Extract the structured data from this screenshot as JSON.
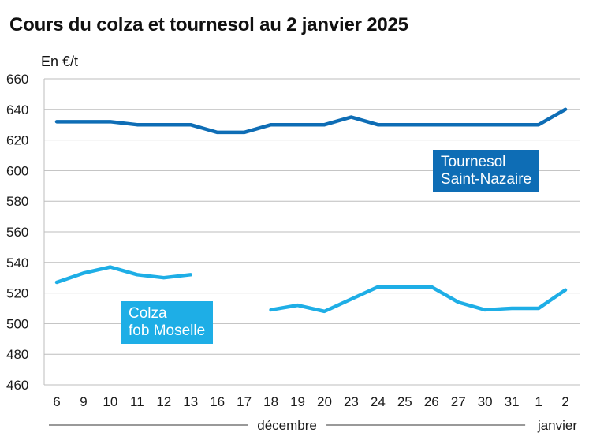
{
  "title": "Cours du colza et tournesol au 2 janvier 2025",
  "unit": "En €/t",
  "colors": {
    "tournesol": "#0e6db5",
    "colza": "#1eaee6",
    "grid": "#bdbdbd"
  },
  "chart_data": {
    "type": "line",
    "title": "Cours du colza et tournesol au 2 janvier 2025",
    "ylabel": "En €/t",
    "ylim": [
      460,
      660
    ],
    "yticks": [
      460,
      480,
      500,
      520,
      540,
      560,
      580,
      600,
      620,
      640,
      660
    ],
    "categories": [
      "6",
      "9",
      "10",
      "11",
      "12",
      "13",
      "16",
      "17",
      "18",
      "19",
      "20",
      "23",
      "24",
      "25",
      "26",
      "27",
      "30",
      "31",
      "1",
      "2"
    ],
    "months": [
      {
        "label": "décembre",
        "from_index": 0,
        "to_index": 17
      },
      {
        "label": "janvier",
        "from_index": 18,
        "to_index": 19
      }
    ],
    "series": [
      {
        "name": "Tournesol Saint-Nazaire",
        "name_lines": [
          "Tournesol",
          "Saint-Nazaire"
        ],
        "color": "#0e6db5",
        "values": [
          632,
          632,
          632,
          630,
          630,
          630,
          625,
          625,
          630,
          630,
          630,
          635,
          630,
          630,
          630,
          630,
          630,
          630,
          630,
          640
        ]
      },
      {
        "name": "Colza fob Moselle",
        "name_lines": [
          "Colza",
          "fob Moselle"
        ],
        "color": "#1eaee6",
        "values": [
          527,
          533,
          537,
          532,
          530,
          532,
          null,
          null,
          509,
          512,
          508,
          516,
          524,
          524,
          524,
          514,
          509,
          510,
          510,
          522
        ]
      }
    ]
  }
}
